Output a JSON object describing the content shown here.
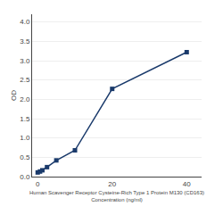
{
  "chart_data": {
    "type": "line",
    "x_label": "Human Scavenger Receptor Cysteine-Rich Type 1 Protein M130 (CD163)\nConcentration (ng/ml)",
    "y_label": "OD",
    "x": [
      0,
      0.625,
      1.25,
      2.5,
      5,
      10,
      20,
      40
    ],
    "values": [
      0.108,
      0.132,
      0.164,
      0.245,
      0.42,
      0.68,
      2.27,
      3.22
    ],
    "color": "#1a3a6b",
    "marker": "square",
    "xlim": [
      -1.5,
      44
    ],
    "xticks": [
      0,
      20,
      40
    ],
    "ylim": [
      0,
      4.2
    ],
    "yticks": [
      {
        "value": 0,
        "label": "0.0"
      },
      0.5,
      {
        "value": 1,
        "label": "1.0"
      },
      1.5,
      {
        "value": 2,
        "label": "2.0"
      },
      2.5,
      {
        "value": 3,
        "label": "3.0"
      },
      3.5,
      {
        "value": 4,
        "label": "4.0"
      }
    ],
    "grid": "y"
  }
}
